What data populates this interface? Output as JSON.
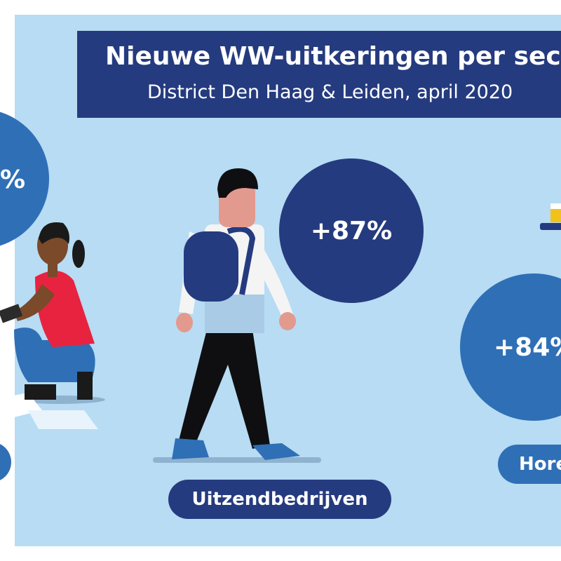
{
  "header": {
    "title": "Nieuwe WW-uitkeringen per sect",
    "subtitle": "District Den Haag & Leiden, april 2020"
  },
  "sectors": [
    {
      "label": "",
      "value_label": "%"
    },
    {
      "label": "Uitzendbedrijven",
      "value_label": "+87%"
    },
    {
      "label": "Hore",
      "value_label": "+84%"
    }
  ],
  "colors": {
    "background": "#b7dcf3",
    "navy": "#253b7f",
    "mid_blue": "#2f6fb6",
    "frame": "#ffffff"
  }
}
